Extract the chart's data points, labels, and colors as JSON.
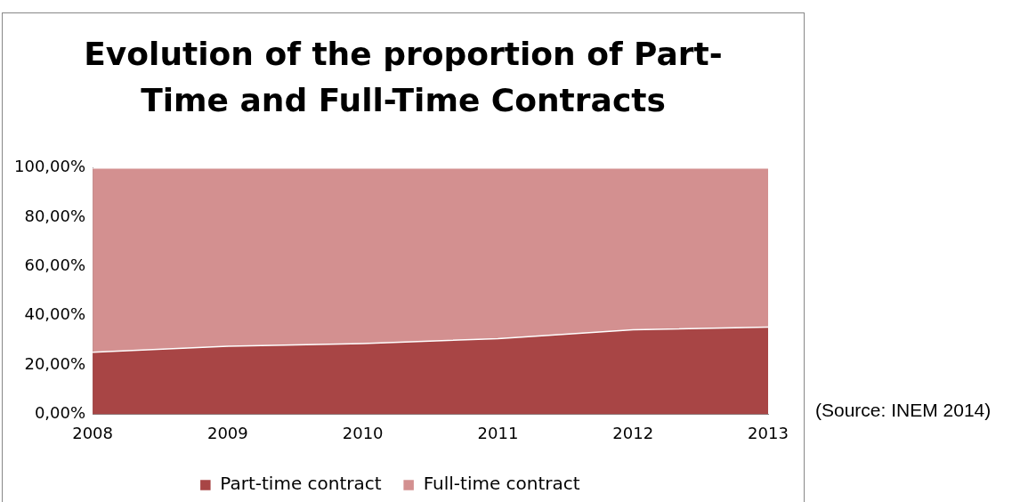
{
  "chart_data": {
    "type": "area",
    "title": "Evolution of the proportion of Part-Time and Full-Time Contracts",
    "categories": [
      "2008",
      "2009",
      "2010",
      "2011",
      "2012",
      "2013"
    ],
    "stacked": true,
    "series": [
      {
        "name": "Part-time contract",
        "color": "#a84545",
        "values": [
          25.2,
          27.6,
          28.7,
          30.7,
          34.3,
          35.4
        ]
      },
      {
        "name": "Full-time contract",
        "color": "#d39090",
        "values": [
          74.8,
          72.4,
          71.3,
          69.3,
          65.7,
          64.6
        ]
      }
    ],
    "ylim": [
      0,
      100
    ],
    "yticks": [
      {
        "value": 0,
        "label": "0,00%"
      },
      {
        "value": 20,
        "label": "20,00%"
      },
      {
        "value": 40,
        "label": "40,00%"
      },
      {
        "value": 60,
        "label": "60,00%"
      },
      {
        "value": 80,
        "label": "80,00%"
      },
      {
        "value": 100,
        "label": "100,00%"
      }
    ],
    "grid": false,
    "legend": "bottom",
    "annotations": [
      "(Source: INEM 2014)"
    ]
  }
}
